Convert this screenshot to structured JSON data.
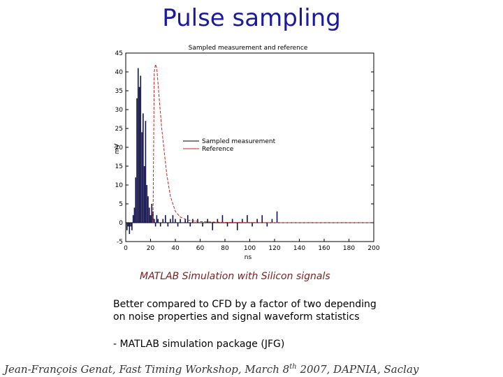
{
  "slide": {
    "title": "Pulse sampling",
    "caption": "MATLAB Simulation with Silicon signals",
    "body_line1": "Better compared to CFD by a factor of two depending",
    "body_line2": "on noise properties and signal waveform statistics",
    "bullet": "-  MATLAB simulation package (JFG)",
    "footer_pre": "Jean-François  Genat,   Fast Timing Workshop, March 8",
    "footer_sup": "th",
    "footer_post": " 2007, DAPNIA, Saclay"
  },
  "chart_data": {
    "type": "bar",
    "title": "Sampled measurement and reference",
    "xlabel": "ns",
    "ylabel": "mV",
    "xlim": [
      0,
      200
    ],
    "ylim": [
      -5,
      45
    ],
    "xticks": [
      0,
      20,
      40,
      60,
      80,
      100,
      120,
      140,
      160,
      180,
      200
    ],
    "yticks": [
      -5,
      0,
      5,
      10,
      15,
      20,
      25,
      30,
      35,
      40,
      45
    ],
    "legend": {
      "position": "center-right",
      "entries": [
        {
          "label": "Sampled measurement",
          "color": "#000000"
        },
        {
          "label": "Reference",
          "color": "#cc2222"
        }
      ]
    },
    "series": [
      {
        "name": "Sampled measurement",
        "kind": "bar",
        "color": "#10104a",
        "x": [
          1,
          2,
          3,
          4,
          5,
          6,
          7,
          8,
          9,
          10,
          11,
          12,
          13,
          14,
          15,
          16,
          17,
          18,
          19,
          20,
          21,
          22,
          23,
          24,
          25,
          26,
          28,
          30,
          32,
          34,
          36,
          38,
          40,
          42,
          44,
          46,
          48,
          50,
          52,
          54,
          58,
          62,
          66,
          70,
          74,
          78,
          82,
          86,
          90,
          94,
          98,
          102,
          106,
          110,
          114,
          118,
          122
        ],
        "values": [
          -2,
          -1,
          -3,
          -1,
          -2,
          2,
          4,
          12,
          33,
          41,
          36,
          39,
          24,
          29,
          15,
          27,
          10,
          7,
          4,
          2,
          5,
          3,
          1,
          -1,
          2,
          1,
          -1,
          1,
          2,
          -1,
          1,
          2,
          1,
          -1,
          1,
          0,
          1,
          2,
          -1,
          1,
          1,
          -1,
          1,
          -2,
          1,
          2,
          -1,
          1,
          -2,
          1,
          2,
          -1,
          1,
          2,
          -1,
          1,
          3
        ]
      },
      {
        "name": "Reference",
        "kind": "line",
        "color": "#cc2222",
        "x": [
          22,
          23,
          24,
          25,
          26,
          27,
          28,
          29,
          30,
          31,
          32,
          33,
          34,
          35,
          36,
          38,
          40,
          44,
          50,
          60,
          80,
          120,
          200
        ],
        "values": [
          0,
          40,
          42,
          41,
          37,
          33,
          29,
          25,
          22,
          19,
          16,
          13,
          11,
          9,
          7,
          5,
          3,
          1.5,
          0.7,
          0.3,
          0.1,
          0,
          0
        ]
      }
    ]
  }
}
